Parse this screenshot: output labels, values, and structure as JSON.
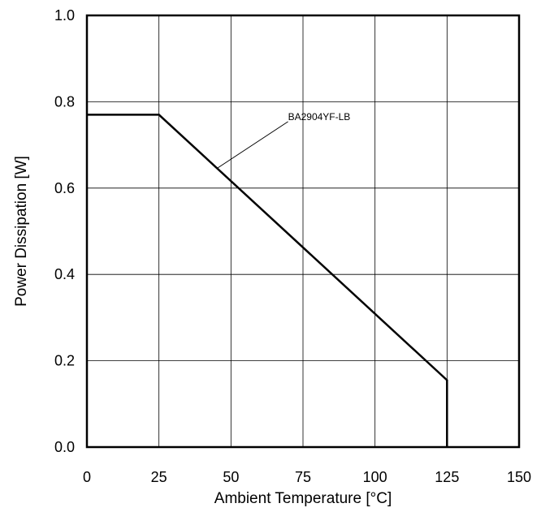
{
  "chart_data": {
    "type": "line",
    "title": "",
    "xlabel": "Ambient Temperature [°C]",
    "ylabel": "Power Dissipation [W]",
    "xlim": [
      0,
      150
    ],
    "ylim": [
      0,
      1.0
    ],
    "x_ticks": [
      0,
      25,
      50,
      75,
      100,
      125,
      150
    ],
    "y_ticks": [
      0.0,
      0.2,
      0.4,
      0.6,
      0.8,
      1.0
    ],
    "x_tick_labels": [
      "0",
      "25",
      "50",
      "75",
      "100",
      "125",
      "150"
    ],
    "y_tick_labels": [
      "0.0",
      "0.2",
      "0.4",
      "0.6",
      "0.8",
      "1.0"
    ],
    "grid": true,
    "legend": "none",
    "series": [
      {
        "name": "BA2904YF-LB",
        "x": [
          0,
          25,
          125,
          125
        ],
        "y": [
          0.77,
          0.77,
          0.155,
          0.0
        ],
        "color": "#000000"
      }
    ],
    "annotations": [
      {
        "text": "BA2904YF-LB",
        "target_x": 45,
        "target_y": 0.645
      }
    ]
  }
}
